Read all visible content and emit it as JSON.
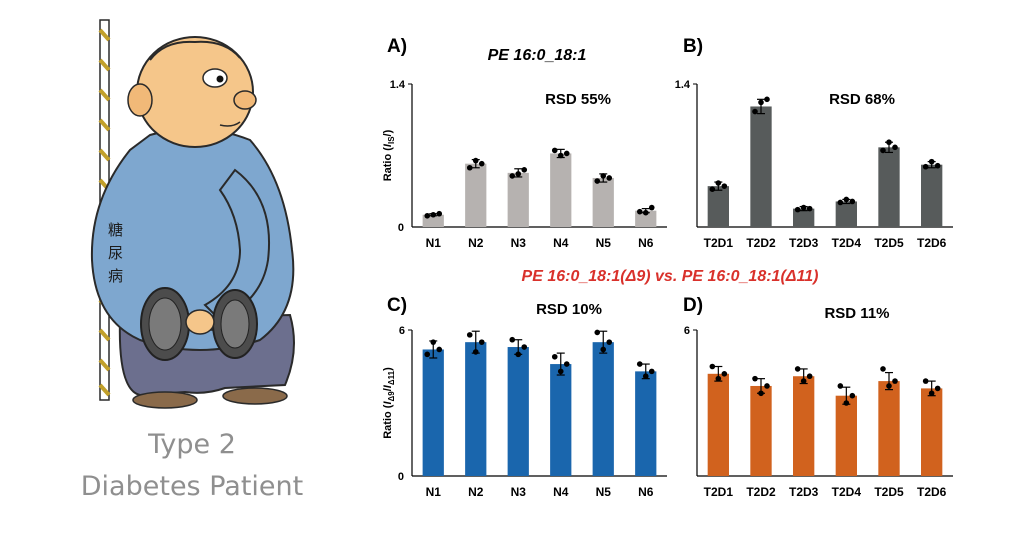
{
  "illustration": {
    "name": "diabetes-patient-cartoon",
    "belly_text": [
      "糖",
      "尿",
      "病"
    ],
    "caption_line1": "Type 2",
    "caption_line2": "Diabetes Patient"
  },
  "comparison_title": "PE 16:0_18:1(Δ9) vs. PE 16:0_18:1(Δ11)",
  "chart_data": [
    {
      "id": "A",
      "panel_label": "A)",
      "type": "bar",
      "title": "PE 16:0_18:1",
      "ylabel_main": "Ratio (",
      "ylabel_italic": "I",
      "ylabel_slash": "/",
      "ylabel_sub": "IS",
      "ylabel_end": ")",
      "annotation": "RSD 55%",
      "ylim": [
        0,
        1.4
      ],
      "yticks": [
        "0",
        "1.4"
      ],
      "categories": [
        "N1",
        "N2",
        "N3",
        "N4",
        "N5",
        "N6"
      ],
      "values": [
        0.12,
        0.62,
        0.53,
        0.72,
        0.48,
        0.16
      ],
      "errors": [
        0.01,
        0.04,
        0.04,
        0.04,
        0.04,
        0.02
      ],
      "points": [
        [
          0.11,
          0.12,
          0.13
        ],
        [
          0.58,
          0.65,
          0.62
        ],
        [
          0.5,
          0.52,
          0.56
        ],
        [
          0.75,
          0.7,
          0.72
        ],
        [
          0.45,
          0.5,
          0.48
        ],
        [
          0.15,
          0.14,
          0.19
        ]
      ],
      "color": "#b6b2b0",
      "grid": false
    },
    {
      "id": "B",
      "panel_label": "B)",
      "type": "bar",
      "annotation": "RSD 68%",
      "ylim": [
        0,
        1.4
      ],
      "yticks": [
        "",
        "1.4"
      ],
      "categories": [
        "T2D1",
        "T2D2",
        "T2D3",
        "T2D4",
        "T2D5",
        "T2D6"
      ],
      "values": [
        0.4,
        1.18,
        0.18,
        0.25,
        0.78,
        0.61
      ],
      "errors": [
        0.04,
        0.07,
        0.02,
        0.02,
        0.05,
        0.03
      ],
      "points": [
        [
          0.37,
          0.43,
          0.4
        ],
        [
          1.13,
          1.22,
          1.25
        ],
        [
          0.17,
          0.19,
          0.18
        ],
        [
          0.24,
          0.27,
          0.25
        ],
        [
          0.75,
          0.83,
          0.78
        ],
        [
          0.59,
          0.64,
          0.6
        ]
      ],
      "color": "#575b5b",
      "grid": false
    },
    {
      "id": "C",
      "panel_label": "C)",
      "type": "bar",
      "ylabel_main": "Ratio (",
      "ylabel_italic": "I",
      "ylabel_sub": "Δ9",
      "ylabel_slash": "/",
      "ylabel_italic2": "I",
      "ylabel_sub2": "Δ11",
      "ylabel_end": ")",
      "annotation": "RSD 10%",
      "ylim": [
        0,
        6
      ],
      "yticks": [
        "0",
        "6"
      ],
      "categories": [
        "N1",
        "N2",
        "N3",
        "N4",
        "N5",
        "N6"
      ],
      "values": [
        5.2,
        5.5,
        5.3,
        4.6,
        5.5,
        4.3
      ],
      "errors": [
        0.35,
        0.45,
        0.3,
        0.45,
        0.45,
        0.3
      ],
      "points": [
        [
          5.0,
          5.5,
          5.2
        ],
        [
          5.8,
          5.1,
          5.5
        ],
        [
          5.6,
          5.0,
          5.3
        ],
        [
          4.9,
          4.3,
          4.6
        ],
        [
          5.9,
          5.2,
          5.5
        ],
        [
          4.6,
          4.1,
          4.3
        ]
      ],
      "color": "#1a66ad",
      "grid": false
    },
    {
      "id": "D",
      "panel_label": "D)",
      "type": "bar",
      "annotation": "RSD 11%",
      "ylim": [
        0,
        6
      ],
      "yticks": [
        "",
        "6"
      ],
      "categories": [
        "T2D1",
        "T2D2",
        "T2D3",
        "T2D4",
        "T2D5",
        "T2D6"
      ],
      "values": [
        4.2,
        3.7,
        4.1,
        3.3,
        3.9,
        3.6
      ],
      "errors": [
        0.3,
        0.3,
        0.3,
        0.35,
        0.35,
        0.3
      ],
      "points": [
        [
          4.5,
          4.0,
          4.2
        ],
        [
          4.0,
          3.4,
          3.7
        ],
        [
          4.4,
          3.9,
          4.1
        ],
        [
          3.7,
          3.0,
          3.3
        ],
        [
          4.4,
          3.7,
          3.9
        ],
        [
          3.9,
          3.4,
          3.6
        ]
      ],
      "color": "#d1621e",
      "grid": false
    }
  ]
}
